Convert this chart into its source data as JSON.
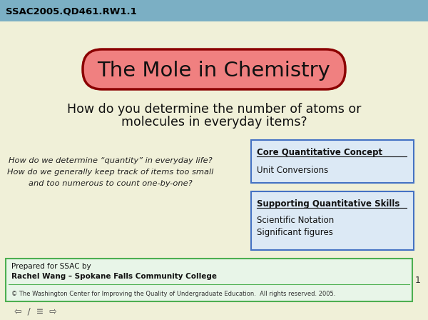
{
  "background_color": "#f0f0d8",
  "header_color": "#7bafc4",
  "header_text": "SSAC2005.QD461.RW1.1",
  "header_text_color": "#000000",
  "title_text": "The Mole in Chemistry",
  "title_bg_color": "#f08080",
  "title_border_color": "#8b0000",
  "subtitle_line1": "How do you determine the number of atoms or",
  "subtitle_line2": "molecules in everyday items?",
  "left_italic_lines": [
    "How do we determine “quantity” in everyday life?",
    "How do we generally keep track of items too small",
    "and too numerous to count one-by-one?"
  ],
  "box1_title": "Core Quantitative Concept",
  "box1_content": "Unit Conversions",
  "box2_title": "Supporting Quantitative Skills",
  "box2_lines": [
    "Scientific Notation",
    "Significant figures"
  ],
  "box_bg_color": "#dce9f5",
  "box_border_color": "#4472c4",
  "footer_bg_color": "#e8f5e8",
  "footer_border_color": "#4caf50",
  "footer_line1": "Prepared for SSAC by",
  "footer_line2": "Rachel Wang – Spokane Falls Community College",
  "footer_copyright": "© The Washington Center for Improving the Quality of Undergraduate Education.  All rights reserved. 2005.",
  "page_number": "1",
  "nav_text": "⇦  /  ≡  ⇨"
}
